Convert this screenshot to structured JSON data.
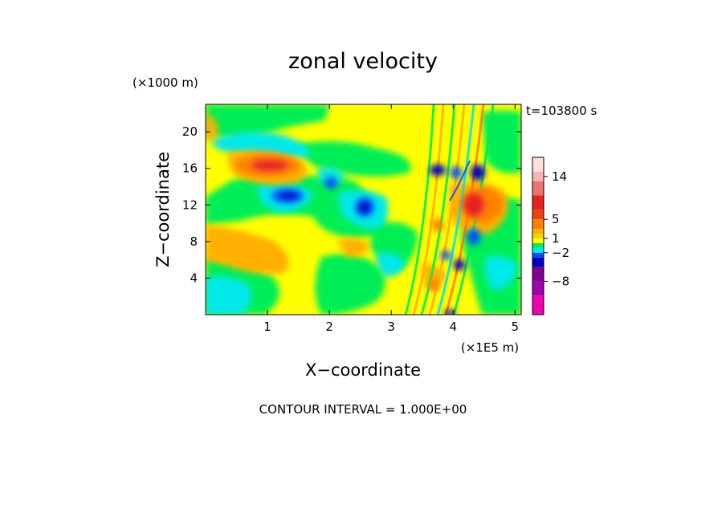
{
  "chart_data": {
    "type": "heatmap",
    "title": "zonal velocity",
    "xlabel": "X−coordinate",
    "ylabel": "Z−coordinate",
    "x_unit": "(×1E5 m)",
    "y_unit": "(×1000 m)",
    "time_label": "t=103800 s",
    "footer": "CONTOUR INTERVAL = 1.000E+00",
    "xlim": [
      0,
      5.1
    ],
    "ylim": [
      0,
      23
    ],
    "x_ticks": [
      "1",
      "2",
      "3",
      "4",
      "5"
    ],
    "x_tick_values": [
      1,
      2,
      3,
      4,
      5
    ],
    "y_ticks": [
      "4",
      "8",
      "12",
      "16",
      "20"
    ],
    "y_tick_values": [
      4,
      8,
      12,
      16,
      20
    ],
    "colorbar": {
      "labels": [
        "14",
        "5",
        "1",
        "−2",
        "−8"
      ],
      "label_values": [
        14,
        5,
        1,
        -2,
        -8
      ],
      "levels": [
        {
          "from": 15,
          "to": 18,
          "color": "#fde0dc"
        },
        {
          "from": 13,
          "to": 15,
          "color": "#f8b4b4"
        },
        {
          "from": 10,
          "to": 13,
          "color": "#f07070"
        },
        {
          "from": 7,
          "to": 10,
          "color": "#e82020"
        },
        {
          "from": 5,
          "to": 7,
          "color": "#f04010"
        },
        {
          "from": 3,
          "to": 5,
          "color": "#ff8000"
        },
        {
          "from": 2,
          "to": 3,
          "color": "#ffb000"
        },
        {
          "from": 1,
          "to": 2,
          "color": "#f8d000"
        },
        {
          "from": 0,
          "to": 1,
          "color": "#ffff00"
        },
        {
          "from": -1,
          "to": 0,
          "color": "#00ee55"
        },
        {
          "from": -2,
          "to": -1,
          "color": "#00e8e8"
        },
        {
          "from": -3,
          "to": -2,
          "color": "#0050ff"
        },
        {
          "from": -5,
          "to": -3,
          "color": "#0000c0"
        },
        {
          "from": -8,
          "to": -5,
          "color": "#800090"
        },
        {
          "from": -11,
          "to": -8,
          "color": "#a000b0"
        },
        {
          "from": -15,
          "to": -11,
          "color": "#f000b0"
        }
      ]
    },
    "features": [
      {
        "kind": "jet",
        "x": 1.1,
        "z": 16.2,
        "value": 5
      },
      {
        "kind": "jet",
        "x": 4.3,
        "z": 12.0,
        "value": 7
      },
      {
        "kind": "trough",
        "x": 1.35,
        "z": 13.0,
        "value": -3
      },
      {
        "kind": "trough",
        "x": 2.55,
        "z": 11.8,
        "value": -3
      },
      {
        "kind": "trough",
        "x": 2.1,
        "z": 14.5,
        "value": -3
      },
      {
        "kind": "trough",
        "x": 3.8,
        "z": 16.0,
        "value": -3
      }
    ]
  }
}
